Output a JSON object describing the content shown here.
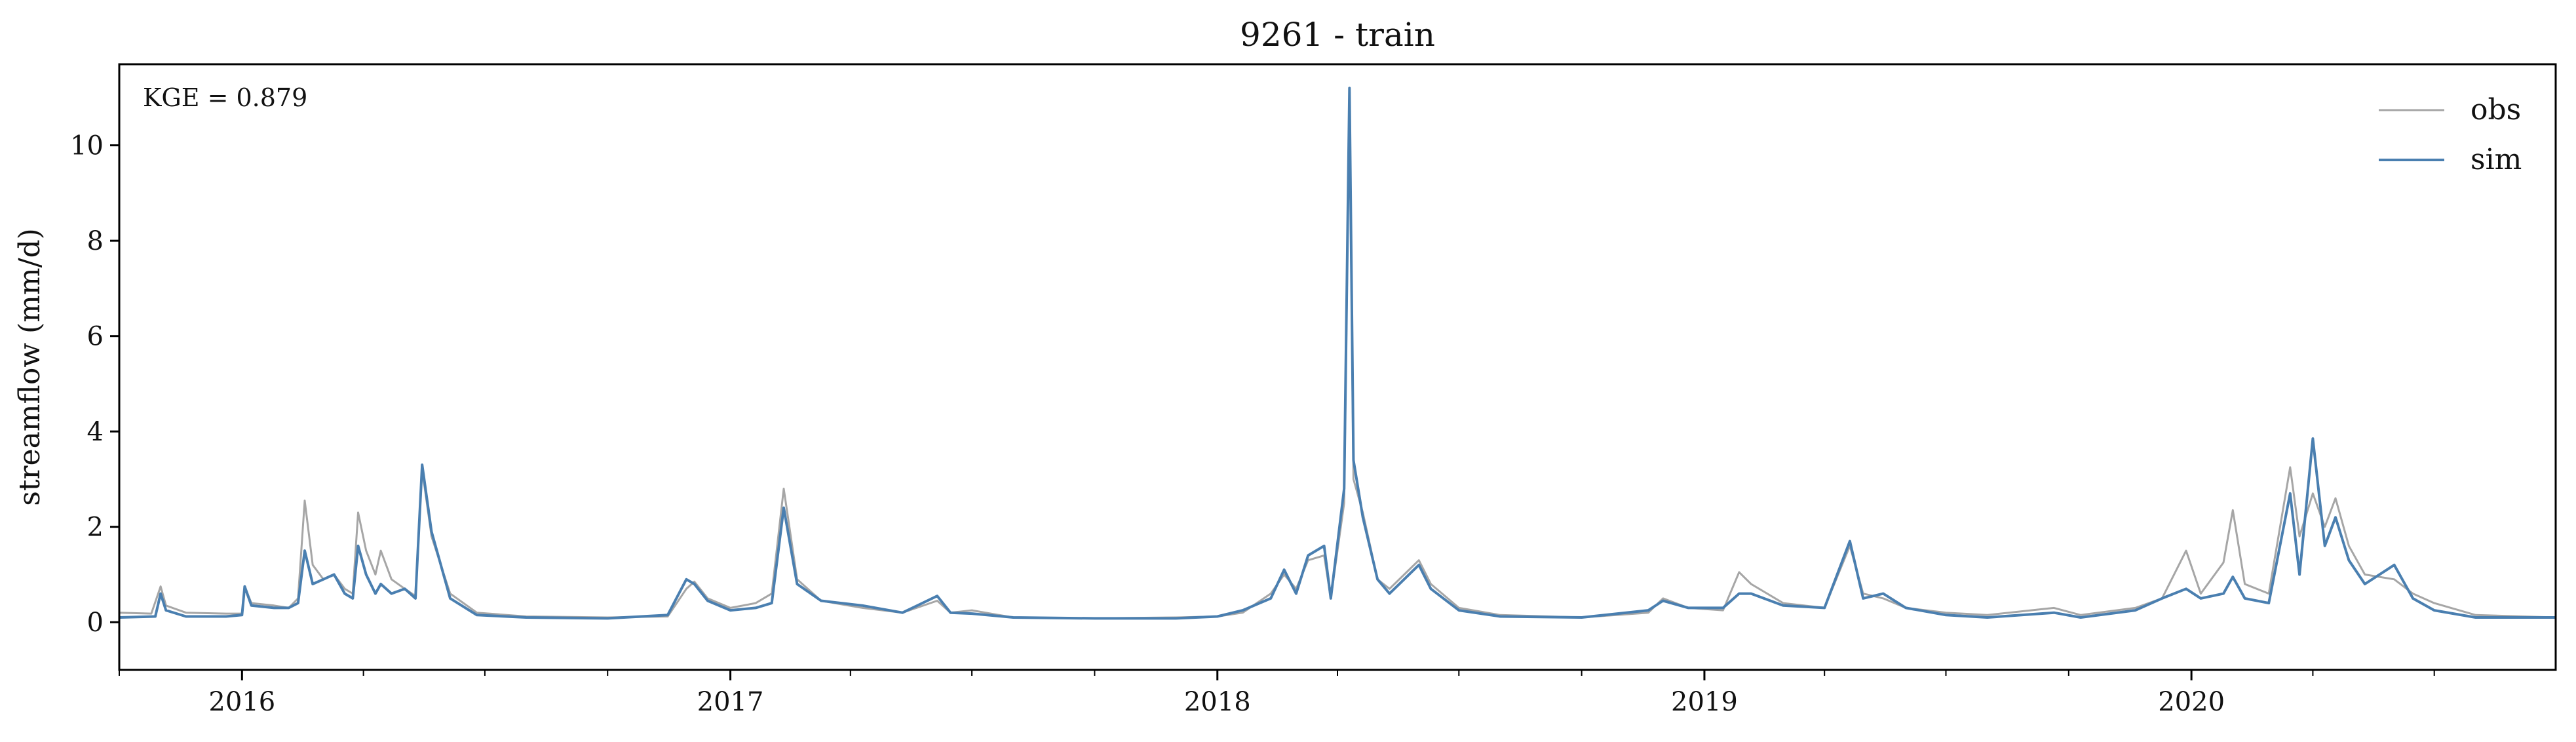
{
  "chart_data": {
    "type": "line",
    "title": "9261 - train",
    "xlabel": "",
    "ylabel": "streamflow (mm/d)",
    "annotation": "KGE = 0.879",
    "x_range": [
      "2015-10-01",
      "2020-09-30"
    ],
    "ylim": [
      -1,
      11.7
    ],
    "y_ticks": [
      0,
      2,
      4,
      6,
      8,
      10
    ],
    "x_tick_labels": [
      "2016",
      "2017",
      "2018",
      "2019",
      "2020"
    ],
    "x_tick_dates": [
      "2016-01-01",
      "2017-01-01",
      "2018-01-01",
      "2019-01-01",
      "2020-01-01"
    ],
    "grid": false,
    "legend_position": "top-right",
    "series": [
      {
        "name": "obs",
        "color": "#a6a6a6",
        "points": [
          [
            "2015-10-01",
            0.2
          ],
          [
            "2015-10-25",
            0.18
          ],
          [
            "2015-11-01",
            0.75
          ],
          [
            "2015-11-05",
            0.35
          ],
          [
            "2015-11-20",
            0.2
          ],
          [
            "2015-12-20",
            0.18
          ],
          [
            "2016-01-01",
            0.18
          ],
          [
            "2016-01-03",
            0.75
          ],
          [
            "2016-01-08",
            0.4
          ],
          [
            "2016-01-25",
            0.35
          ],
          [
            "2016-02-05",
            0.3
          ],
          [
            "2016-02-12",
            0.5
          ],
          [
            "2016-02-17",
            2.55
          ],
          [
            "2016-02-23",
            1.2
          ],
          [
            "2016-03-02",
            0.9
          ],
          [
            "2016-03-10",
            1.0
          ],
          [
            "2016-03-18",
            0.7
          ],
          [
            "2016-03-24",
            0.6
          ],
          [
            "2016-03-28",
            2.3
          ],
          [
            "2016-04-03",
            1.5
          ],
          [
            "2016-04-10",
            1.0
          ],
          [
            "2016-04-14",
            1.5
          ],
          [
            "2016-04-22",
            0.9
          ],
          [
            "2016-05-02",
            0.7
          ],
          [
            "2016-05-10",
            0.55
          ],
          [
            "2016-05-15",
            3.2
          ],
          [
            "2016-05-22",
            1.8
          ],
          [
            "2016-06-05",
            0.6
          ],
          [
            "2016-06-25",
            0.2
          ],
          [
            "2016-08-01",
            0.12
          ],
          [
            "2016-10-01",
            0.1
          ],
          [
            "2016-11-15",
            0.12
          ],
          [
            "2016-11-29",
            0.7
          ],
          [
            "2016-12-05",
            0.85
          ],
          [
            "2016-12-15",
            0.5
          ],
          [
            "2017-01-01",
            0.3
          ],
          [
            "2017-01-20",
            0.4
          ],
          [
            "2017-02-01",
            0.6
          ],
          [
            "2017-02-10",
            2.8
          ],
          [
            "2017-02-20",
            0.9
          ],
          [
            "2017-03-10",
            0.45
          ],
          [
            "2017-04-10",
            0.3
          ],
          [
            "2017-05-10",
            0.2
          ],
          [
            "2017-06-05",
            0.45
          ],
          [
            "2017-06-15",
            0.2
          ],
          [
            "2017-07-01",
            0.25
          ],
          [
            "2017-08-01",
            0.1
          ],
          [
            "2017-10-01",
            0.08
          ],
          [
            "2017-12-01",
            0.1
          ],
          [
            "2018-01-01",
            0.12
          ],
          [
            "2018-01-20",
            0.2
          ],
          [
            "2018-02-10",
            0.6
          ],
          [
            "2018-02-20",
            1.0
          ],
          [
            "2018-03-01",
            0.7
          ],
          [
            "2018-03-10",
            1.3
          ],
          [
            "2018-03-22",
            1.4
          ],
          [
            "2018-03-27",
            0.5
          ],
          [
            "2018-04-06",
            2.5
          ],
          [
            "2018-04-10",
            11.0
          ],
          [
            "2018-04-13",
            3.0
          ],
          [
            "2018-04-20",
            2.3
          ],
          [
            "2018-05-01",
            0.9
          ],
          [
            "2018-05-10",
            0.7
          ],
          [
            "2018-06-01",
            1.3
          ],
          [
            "2018-06-10",
            0.8
          ],
          [
            "2018-07-01",
            0.3
          ],
          [
            "2018-08-01",
            0.15
          ],
          [
            "2018-10-01",
            0.1
          ],
          [
            "2018-11-20",
            0.2
          ],
          [
            "2018-12-01",
            0.5
          ],
          [
            "2018-12-20",
            0.3
          ],
          [
            "2019-01-15",
            0.25
          ],
          [
            "2019-01-27",
            1.05
          ],
          [
            "2019-02-05",
            0.8
          ],
          [
            "2019-03-01",
            0.4
          ],
          [
            "2019-04-01",
            0.3
          ],
          [
            "2019-04-20",
            1.6
          ],
          [
            "2019-04-30",
            0.6
          ],
          [
            "2019-05-15",
            0.5
          ],
          [
            "2019-06-01",
            0.3
          ],
          [
            "2019-07-01",
            0.2
          ],
          [
            "2019-08-01",
            0.15
          ],
          [
            "2019-09-20",
            0.3
          ],
          [
            "2019-10-10",
            0.15
          ],
          [
            "2019-11-20",
            0.3
          ],
          [
            "2019-12-10",
            0.5
          ],
          [
            "2019-12-28",
            1.5
          ],
          [
            "2020-01-08",
            0.6
          ],
          [
            "2020-01-25",
            1.25
          ],
          [
            "2020-02-01",
            2.35
          ],
          [
            "2020-02-10",
            0.8
          ],
          [
            "2020-02-28",
            0.6
          ],
          [
            "2020-03-15",
            3.25
          ],
          [
            "2020-03-22",
            1.8
          ],
          [
            "2020-04-01",
            2.7
          ],
          [
            "2020-04-10",
            2.0
          ],
          [
            "2020-04-18",
            2.6
          ],
          [
            "2020-04-28",
            1.6
          ],
          [
            "2020-05-10",
            1.0
          ],
          [
            "2020-06-01",
            0.9
          ],
          [
            "2020-06-15",
            0.6
          ],
          [
            "2020-07-01",
            0.4
          ],
          [
            "2020-08-01",
            0.15
          ],
          [
            "2020-09-30",
            0.1
          ]
        ]
      },
      {
        "name": "sim",
        "color": "#4a7fb0",
        "points": [
          [
            "2015-10-01",
            0.1
          ],
          [
            "2015-10-28",
            0.12
          ],
          [
            "2015-11-01",
            0.6
          ],
          [
            "2015-11-05",
            0.25
          ],
          [
            "2015-11-20",
            0.12
          ],
          [
            "2015-12-20",
            0.12
          ],
          [
            "2016-01-01",
            0.15
          ],
          [
            "2016-01-03",
            0.75
          ],
          [
            "2016-01-08",
            0.35
          ],
          [
            "2016-01-25",
            0.3
          ],
          [
            "2016-02-05",
            0.3
          ],
          [
            "2016-02-12",
            0.4
          ],
          [
            "2016-02-17",
            1.5
          ],
          [
            "2016-02-23",
            0.8
          ],
          [
            "2016-03-02",
            0.9
          ],
          [
            "2016-03-10",
            1.0
          ],
          [
            "2016-03-18",
            0.6
          ],
          [
            "2016-03-24",
            0.5
          ],
          [
            "2016-03-28",
            1.6
          ],
          [
            "2016-04-03",
            1.0
          ],
          [
            "2016-04-10",
            0.6
          ],
          [
            "2016-04-14",
            0.8
          ],
          [
            "2016-04-22",
            0.6
          ],
          [
            "2016-05-02",
            0.7
          ],
          [
            "2016-05-10",
            0.5
          ],
          [
            "2016-05-15",
            3.3
          ],
          [
            "2016-05-22",
            1.9
          ],
          [
            "2016-06-05",
            0.5
          ],
          [
            "2016-06-25",
            0.15
          ],
          [
            "2016-08-01",
            0.1
          ],
          [
            "2016-10-01",
            0.08
          ],
          [
            "2016-11-15",
            0.15
          ],
          [
            "2016-11-29",
            0.9
          ],
          [
            "2016-12-05",
            0.8
          ],
          [
            "2016-12-15",
            0.45
          ],
          [
            "2017-01-01",
            0.25
          ],
          [
            "2017-01-20",
            0.3
          ],
          [
            "2017-02-01",
            0.4
          ],
          [
            "2017-02-10",
            2.4
          ],
          [
            "2017-02-20",
            0.8
          ],
          [
            "2017-03-10",
            0.45
          ],
          [
            "2017-04-10",
            0.35
          ],
          [
            "2017-05-10",
            0.2
          ],
          [
            "2017-06-05",
            0.55
          ],
          [
            "2017-06-15",
            0.2
          ],
          [
            "2017-07-01",
            0.18
          ],
          [
            "2017-08-01",
            0.1
          ],
          [
            "2017-10-01",
            0.08
          ],
          [
            "2017-12-01",
            0.08
          ],
          [
            "2018-01-01",
            0.12
          ],
          [
            "2018-01-20",
            0.25
          ],
          [
            "2018-02-10",
            0.5
          ],
          [
            "2018-02-20",
            1.1
          ],
          [
            "2018-03-01",
            0.6
          ],
          [
            "2018-03-10",
            1.4
          ],
          [
            "2018-03-22",
            1.6
          ],
          [
            "2018-03-27",
            0.5
          ],
          [
            "2018-04-06",
            2.8
          ],
          [
            "2018-04-10",
            11.2
          ],
          [
            "2018-04-13",
            3.4
          ],
          [
            "2018-04-20",
            2.2
          ],
          [
            "2018-05-01",
            0.9
          ],
          [
            "2018-05-10",
            0.6
          ],
          [
            "2018-06-01",
            1.2
          ],
          [
            "2018-06-10",
            0.7
          ],
          [
            "2018-07-01",
            0.25
          ],
          [
            "2018-08-01",
            0.12
          ],
          [
            "2018-10-01",
            0.1
          ],
          [
            "2018-11-20",
            0.25
          ],
          [
            "2018-12-01",
            0.45
          ],
          [
            "2018-12-20",
            0.3
          ],
          [
            "2019-01-15",
            0.3
          ],
          [
            "2019-01-27",
            0.6
          ],
          [
            "2019-02-05",
            0.6
          ],
          [
            "2019-03-01",
            0.35
          ],
          [
            "2019-04-01",
            0.3
          ],
          [
            "2019-04-20",
            1.7
          ],
          [
            "2019-04-30",
            0.5
          ],
          [
            "2019-05-15",
            0.6
          ],
          [
            "2019-06-01",
            0.3
          ],
          [
            "2019-07-01",
            0.15
          ],
          [
            "2019-08-01",
            0.1
          ],
          [
            "2019-09-20",
            0.2
          ],
          [
            "2019-10-10",
            0.1
          ],
          [
            "2019-11-20",
            0.25
          ],
          [
            "2019-12-10",
            0.5
          ],
          [
            "2019-12-28",
            0.7
          ],
          [
            "2020-01-08",
            0.5
          ],
          [
            "2020-01-25",
            0.6
          ],
          [
            "2020-02-01",
            0.95
          ],
          [
            "2020-02-10",
            0.5
          ],
          [
            "2020-02-28",
            0.4
          ],
          [
            "2020-03-15",
            2.7
          ],
          [
            "2020-03-22",
            1.0
          ],
          [
            "2020-04-01",
            3.85
          ],
          [
            "2020-04-10",
            1.6
          ],
          [
            "2020-04-18",
            2.2
          ],
          [
            "2020-04-28",
            1.3
          ],
          [
            "2020-05-10",
            0.8
          ],
          [
            "2020-06-01",
            1.2
          ],
          [
            "2020-06-15",
            0.5
          ],
          [
            "2020-07-01",
            0.25
          ],
          [
            "2020-08-01",
            0.1
          ],
          [
            "2020-09-30",
            0.1
          ]
        ]
      }
    ]
  }
}
